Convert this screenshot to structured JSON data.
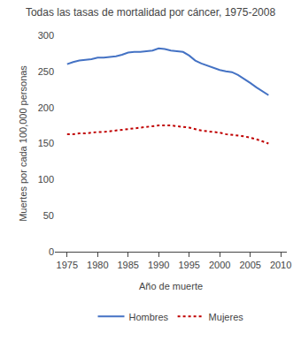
{
  "chart_data": {
    "type": "line",
    "title": "Todas las tasas de mortalidad por cáncer, 1975-2008",
    "x_label": "Año de muerte",
    "y_label": "Muertes por cada 100,000 personas",
    "x": [
      1975,
      1976,
      1977,
      1978,
      1979,
      1980,
      1981,
      1982,
      1983,
      1984,
      1985,
      1986,
      1987,
      1988,
      1989,
      1990,
      1991,
      1992,
      1993,
      1994,
      1995,
      1996,
      1997,
      1998,
      1999,
      2000,
      2001,
      2002,
      2003,
      2004,
      2005,
      2006,
      2007,
      2008
    ],
    "series": [
      {
        "name": "Hombres",
        "color": "#4472C4",
        "line_style": "solid",
        "values": [
          260,
          263,
          265,
          266,
          267,
          269,
          269,
          270,
          271,
          273,
          276,
          277,
          277,
          278,
          279,
          282,
          281,
          279,
          278,
          277,
          272,
          265,
          261,
          258,
          255,
          252,
          250,
          249,
          245,
          240,
          234,
          228,
          223,
          217
        ]
      },
      {
        "name": "Mujeres",
        "color": "#C00000",
        "line_style": "dotted",
        "values": [
          163,
          163,
          164,
          164,
          165,
          166,
          166,
          167,
          168,
          169,
          170,
          171,
          172,
          173,
          174,
          175,
          175,
          175,
          174,
          173,
          172,
          170,
          168,
          167,
          166,
          165,
          163,
          162,
          161,
          160,
          158,
          156,
          153,
          150
        ]
      }
    ],
    "xlim": [
      1973,
      2011
    ],
    "ylim": [
      0,
      300
    ],
    "xticks": [
      1975,
      1980,
      1985,
      1990,
      1995,
      2000,
      2005,
      2010
    ],
    "yticks": [
      0,
      50,
      100,
      150,
      200,
      250,
      300
    ],
    "grid": false,
    "legend": "bottom"
  }
}
